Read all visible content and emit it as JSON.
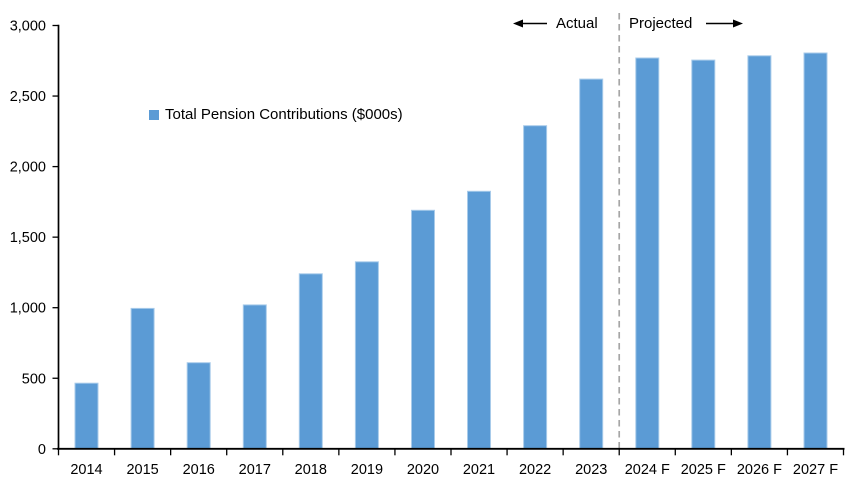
{
  "annotations": {
    "actual_label": "Actual",
    "projected_label": "Projected",
    "arrow_color": "#000000",
    "divider_color": "#A6A6A6"
  },
  "legend": {
    "label": "Total Pension Contributions ($000s)",
    "swatch_color": "#5B9BD5"
  },
  "chart_data": {
    "type": "bar",
    "title": "",
    "xlabel": "",
    "ylabel": "",
    "categories": [
      "2014",
      "2015",
      "2016",
      "2017",
      "2018",
      "2019",
      "2020",
      "2021",
      "2022",
      "2023",
      "2024 F",
      "2025 F",
      "2026 F",
      "2027 F"
    ],
    "values": [
      465,
      995,
      610,
      1020,
      1240,
      1325,
      1690,
      1825,
      2290,
      2620,
      2770,
      2755,
      2785,
      2805
    ],
    "series_name": "Total Pension Contributions ($000s)",
    "ylim": [
      0,
      3000
    ],
    "yticks": [
      0,
      500,
      1000,
      1500,
      2000,
      2500,
      3000
    ],
    "grid": false,
    "legend_position": "inside-upper-left",
    "bar_color": "#5B9BD5",
    "bar_edge_color": "#A8CBEA",
    "axis_color": "#000000",
    "actual_section_label": "Actual",
    "projected_section_label": "Projected",
    "divider_after_index": 9
  }
}
